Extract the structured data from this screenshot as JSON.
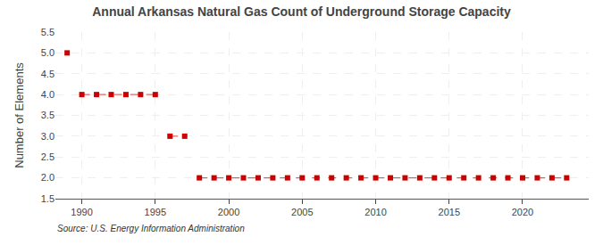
{
  "chart_data": {
    "type": "scatter",
    "title": "Annual Arkansas Natural Gas Count of Underground Storage Capacity",
    "ylabel": "Number of Elements",
    "annotations": [
      "Source: U.S. Energy Information Administration"
    ],
    "x": [
      1989,
      1990,
      1991,
      1992,
      1993,
      1994,
      1995,
      1996,
      1997,
      1998,
      1999,
      2000,
      2001,
      2002,
      2003,
      2004,
      2005,
      2006,
      2007,
      2008,
      2009,
      2010,
      2011,
      2012,
      2013,
      2014,
      2015,
      2016,
      2017,
      2018,
      2019,
      2020,
      2021,
      2022,
      2023
    ],
    "values": [
      5,
      4,
      4,
      4,
      4,
      4,
      4,
      3,
      3,
      2,
      2,
      2,
      2,
      2,
      2,
      2,
      2,
      2,
      2,
      2,
      2,
      2,
      2,
      2,
      2,
      2,
      2,
      2,
      2,
      2,
      2,
      2,
      2,
      2,
      2
    ],
    "color": "#cc0000",
    "marker": "square",
    "line_style": "dashed",
    "xlim": [
      1988.2,
      2024.5
    ],
    "xticks": [
      1990,
      1995,
      2000,
      2005,
      2010,
      2015,
      2020
    ],
    "ylim": [
      1.5,
      5.5
    ],
    "yticks": [
      1.5,
      {
        "value": 2,
        "label": "2.0"
      },
      2.5,
      {
        "value": 3,
        "label": "3.0"
      },
      3.5,
      {
        "value": 4,
        "label": "4.0"
      },
      4.5,
      {
        "value": 5,
        "label": "5.0"
      },
      5.5
    ],
    "grid": true
  }
}
